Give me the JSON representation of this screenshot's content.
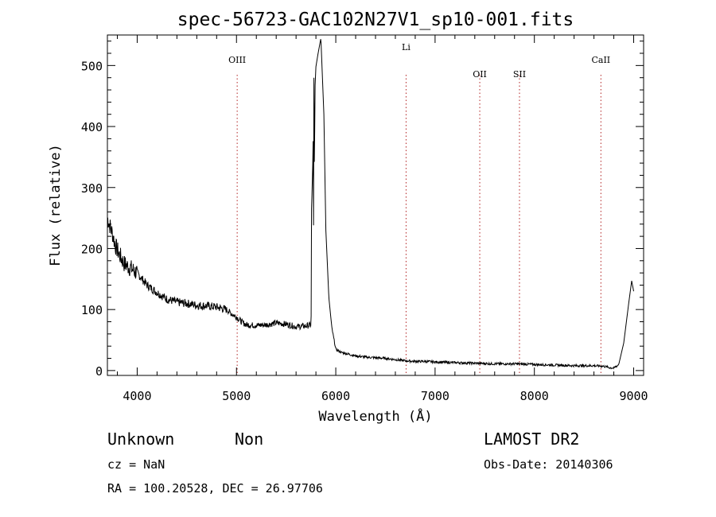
{
  "chart_data": {
    "type": "line",
    "title": "spec-56723-GAC102N27V1_sp10-001.fits",
    "xlabel": "Wavelength (Å)",
    "ylabel": "Flux (relative)",
    "xlim": [
      3700,
      9100
    ],
    "ylim": [
      -8,
      550
    ],
    "x_ticks": [
      4000,
      5000,
      6000,
      7000,
      8000,
      9000
    ],
    "y_ticks": [
      0,
      100,
      200,
      300,
      400,
      500
    ],
    "grid": false,
    "series": [
      {
        "x": [
          3700,
          3730,
          3750,
          3780,
          3820,
          3870,
          3930,
          4000,
          4100,
          4200,
          4300,
          4400,
          4500,
          4600,
          4700,
          4800,
          4900,
          4950,
          5000,
          5050,
          5100,
          5200,
          5300,
          5400,
          5500,
          5600,
          5700,
          5750,
          5770,
          5790,
          5800,
          5820,
          5850,
          5880,
          5900,
          5930,
          5960,
          6000,
          6050,
          6100,
          6200,
          6300,
          6400,
          6500,
          6600,
          6700,
          6800,
          6900,
          7000,
          7200,
          7400,
          7600,
          7800,
          8000,
          8200,
          8400,
          8600,
          8700,
          8750,
          8800,
          8850,
          8900,
          8950,
          8980,
          9000
        ],
        "y": [
          250,
          235,
          225,
          205,
          190,
          175,
          168,
          160,
          140,
          128,
          117,
          112,
          110,
          107,
          106,
          104,
          100,
          93,
          88,
          80,
          75,
          74,
          75,
          78,
          76,
          72,
          73,
          75,
          200,
          460,
          498,
          518,
          545,
          420,
          230,
          120,
          70,
          35,
          30,
          28,
          24,
          22,
          21,
          20,
          18,
          16,
          15,
          15,
          14,
          13,
          12,
          11,
          11,
          10,
          9,
          8,
          8,
          7,
          5,
          4,
          10,
          45,
          110,
          147,
          130
        ]
      }
    ],
    "line_markers": [
      {
        "label": "OIII",
        "x": 5007
      },
      {
        "label": "Li",
        "x": 6708
      },
      {
        "label": "OII",
        "x": 7450
      },
      {
        "label": "SII",
        "x": 7850
      },
      {
        "label": "CaII",
        "x": 8670
      }
    ]
  },
  "info": {
    "type_text": "Unknown",
    "subclass_text": "Non",
    "survey": "LAMOST DR2",
    "cz": "cz = NaN",
    "obs_date": "Obs-Date: 20140306",
    "radec": "RA = 100.20528, DEC =  26.97706"
  }
}
